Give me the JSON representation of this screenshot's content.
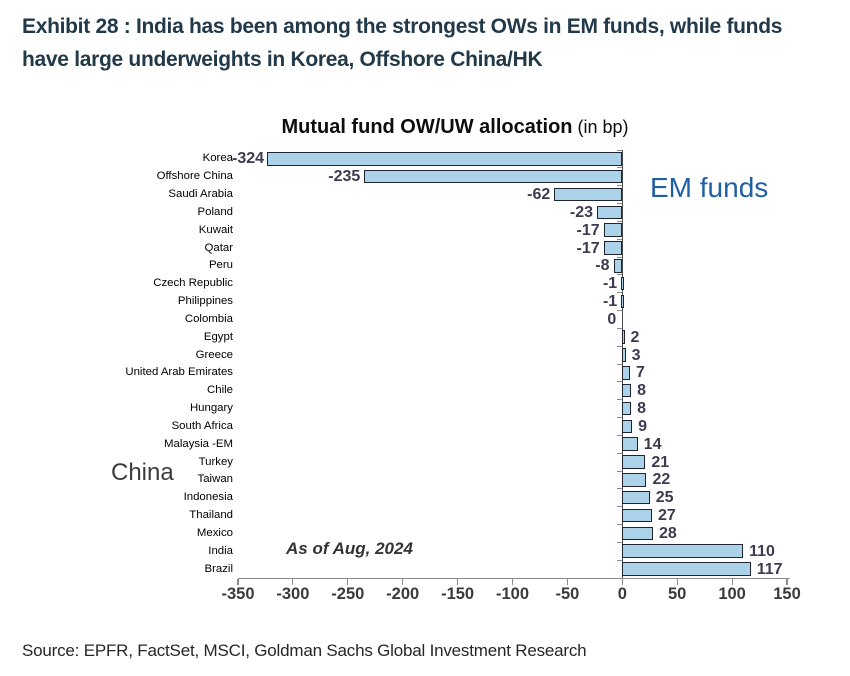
{
  "exhibit": {
    "title_line1": "Exhibit 28 : India has been among the strongest OWs in EM funds, while funds",
    "title_line2": "have large underweights in Korea, Offshore China/HK"
  },
  "chart": {
    "colors": {
      "bar_fill": "#ABD2E9",
      "bar_border": "#1F2430",
      "value_label": "#3E3B4F",
      "tick_label": "#3A3A3A",
      "axis": "#8C8C8C",
      "zero_line": "#4A4A4A",
      "em_funds": "#1F5FA3",
      "title": "#22394A"
    }
  },
  "chart_data": {
    "type": "bar",
    "orientation": "horizontal",
    "title": "Mutual fund OW/UW allocation",
    "title_unit": " (in bp)",
    "categories": [
      "Korea",
      "Offshore China",
      "Saudi Arabia",
      "Poland",
      "Kuwait",
      "Qatar",
      "Peru",
      "Czech Republic",
      "Philippines",
      "Colombia",
      "Egypt",
      "Greece",
      "United Arab Emirates",
      "Chile",
      "Hungary",
      "South Africa",
      "Malaysia -EM",
      "Turkey",
      "Taiwan",
      "Indonesia",
      "Thailand",
      "Mexico",
      "India",
      "Brazil"
    ],
    "values": [
      -324,
      -235,
      -62,
      -23,
      -17,
      -17,
      -8,
      -1,
      -1,
      0,
      2,
      3,
      7,
      8,
      8,
      9,
      14,
      21,
      22,
      25,
      27,
      28,
      110,
      117
    ],
    "xlim": [
      -350,
      150
    ],
    "x_ticks": [
      -350,
      -300,
      -250,
      -200,
      -150,
      -100,
      -50,
      0,
      50,
      100,
      150
    ],
    "grid": false,
    "data_labels": true,
    "legend_position": "none",
    "annotations": [
      {
        "text": "EM funds"
      },
      {
        "text": "As of Aug, 2024"
      },
      {
        "text": "China"
      }
    ]
  },
  "source": "Source: EPFR, FactSet, MSCI, Goldman Sachs Global Investment Research"
}
